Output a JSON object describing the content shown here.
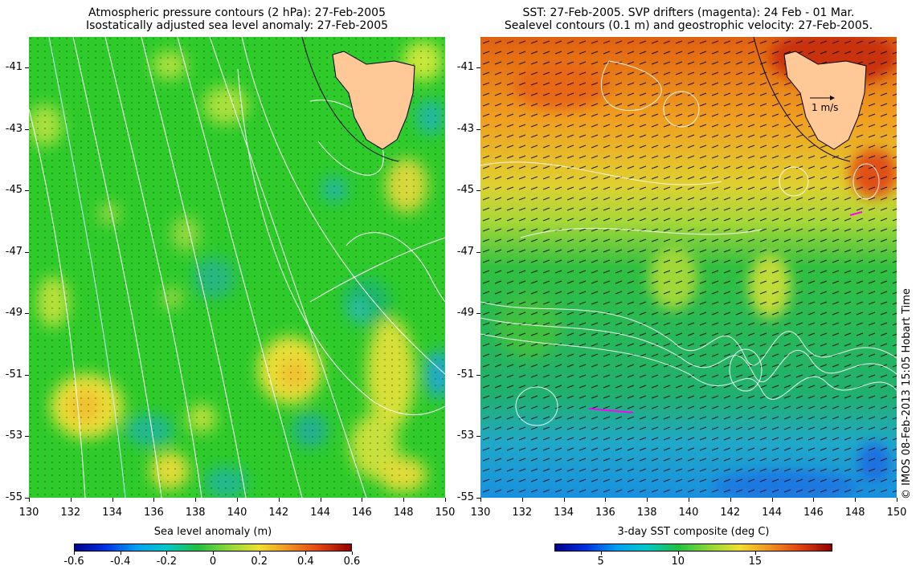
{
  "left_panel": {
    "title_line1": "Atmospheric pressure contours (2 hPa): 27-Feb-2005",
    "title_line2": "Isostatically adjusted sea level anomaly: 27-Feb-2005",
    "x_ticks": [
      "130",
      "132",
      "134",
      "136",
      "138",
      "140",
      "142",
      "144",
      "146",
      "148",
      "150"
    ],
    "y_ticks": [
      "-41",
      "-43",
      "-45",
      "-47",
      "-49",
      "-51",
      "-53",
      "-55"
    ],
    "colorbar": {
      "title": "Sea level anomaly (m)",
      "ticks": [
        "-0.6",
        "-0.4",
        "-0.2",
        "0",
        "0.2",
        "0.4",
        "0.6"
      ],
      "range": [
        -0.6,
        0.6
      ]
    }
  },
  "right_panel": {
    "title_line1": "SST: 27-Feb-2005. SVP drifters (magenta): 24 Feb - 01 Mar.",
    "title_line2": "Sealevel contours (0.1 m) and geostrophic velocity: 27-Feb-2005.",
    "x_ticks": [
      "130",
      "132",
      "134",
      "136",
      "138",
      "140",
      "142",
      "144",
      "146",
      "148",
      "150"
    ],
    "y_ticks": [
      "-41",
      "-43",
      "-45",
      "-47",
      "-49",
      "-51",
      "-53",
      "-55"
    ],
    "scale_label": "1 m/s",
    "colorbar": {
      "title": "3-day SST composite (deg C)",
      "ticks": [
        "5",
        "10",
        "15"
      ],
      "range": [
        2,
        20
      ]
    }
  },
  "map_extent": {
    "lon": [
      130,
      150
    ],
    "lat": [
      -55,
      -40
    ]
  },
  "credit": "© IMOS 08-Feb-2013 15:05 Hobart Time",
  "colors": {
    "land": "#ffc896",
    "contour": "#ffffff",
    "drifter": "#ff00ff",
    "coast": "#000000"
  }
}
